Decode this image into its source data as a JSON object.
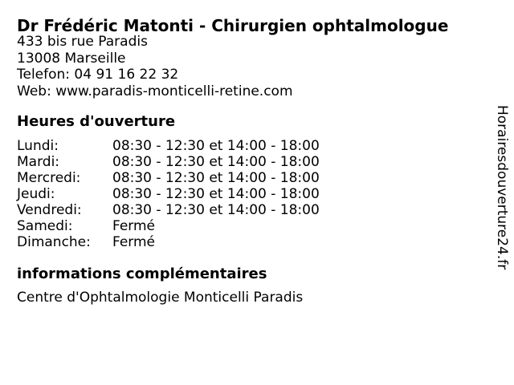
{
  "page": {
    "background": "#ffffff",
    "text_color": "#000000"
  },
  "business": {
    "title": "Dr Frédéric Matonti - Chirurgien ophtalmologue",
    "address_line1": "433 bis rue Paradis",
    "address_line2": "13008 Marseille",
    "phone_line": "Telefon: 04 91 16 22 32",
    "web_line": "Web: www.paradis-monticelli-retine.com"
  },
  "hours": {
    "heading": "Heures d'ouverture",
    "rows": [
      {
        "day": "Lundi:",
        "time": "08:30 - 12:30 et 14:00 - 18:00"
      },
      {
        "day": "Mardi:",
        "time": "08:30 - 12:30 et 14:00 - 18:00"
      },
      {
        "day": "Mercredi:",
        "time": "08:30 - 12:30 et 14:00 - 18:00"
      },
      {
        "day": "Jeudi:",
        "time": "08:30 - 12:30 et 14:00 - 18:00"
      },
      {
        "day": "Vendredi:",
        "time": "08:30 - 12:30 et 14:00 - 18:00"
      },
      {
        "day": "Samedi:",
        "time": "Fermé"
      },
      {
        "day": "Dimanche:",
        "time": "Fermé"
      }
    ]
  },
  "additional_info": {
    "heading": "informations complémentaires",
    "text": "Centre d'Ophtalmologie Monticelli Paradis"
  },
  "watermark": {
    "text": "Horairesdouverture24.fr"
  }
}
